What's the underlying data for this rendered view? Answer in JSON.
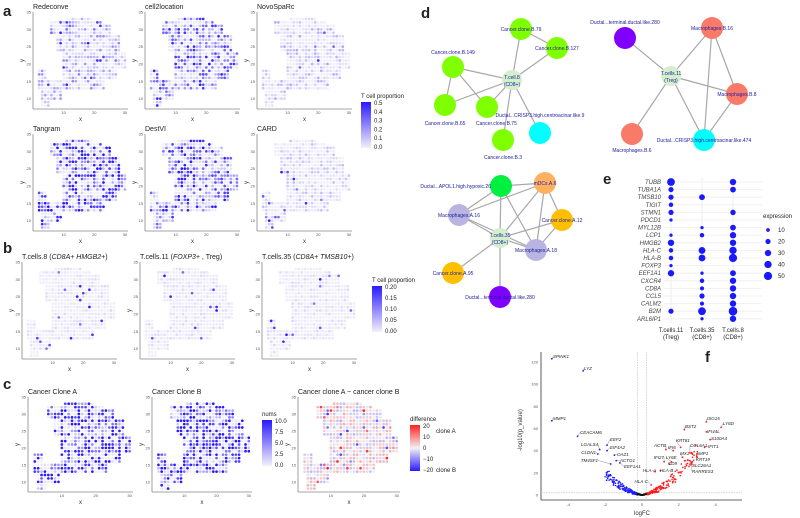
{
  "panel_labels": [
    "a",
    "b",
    "c",
    "d",
    "e",
    "f"
  ],
  "spatial_axis": {
    "xlabel": "x",
    "ylabel": "y",
    "xticks": [
      10,
      20,
      30
    ],
    "yticks": [
      10,
      15,
      20,
      25,
      30,
      35
    ]
  },
  "colors": {
    "low": "#f2f0fa",
    "high": "#2a1aff",
    "red": "#ff2020",
    "node_cancerB": "#7fff00",
    "node_cyan": "#00ffff",
    "node_purple": "#8000ff",
    "node_salmon": "#fa7a6a",
    "node_tcell": "#d4efcb",
    "node_mdc": "#ffb060",
    "node_cancerA": "#ffbf00",
    "node_macroA": "#b9b5e0",
    "node_apol1": "#00f040",
    "dot": "#1a1aff"
  },
  "panel_a": {
    "titles": [
      "Redeconve",
      "cell2location",
      "NovoSpaRc",
      "Tangram",
      "DestVI",
      "CARD"
    ],
    "legend": {
      "title": "T cell proportion",
      "ticks": [
        "0.5",
        "0.4",
        "0.3",
        "0.2",
        "0.1",
        "0.0"
      ]
    }
  },
  "panel_b": {
    "titles": [
      {
        "pre": "T.cells.8 (",
        "ital": "CD8A+ HMGB2+",
        "post": ")"
      },
      {
        "pre": "T.cells.11 (",
        "ital": "FOXP3+",
        "post": " , Treg)"
      },
      {
        "pre": "T.cells.35 (",
        "ital": "CD8A+ TMSB10+",
        "post": ")"
      }
    ],
    "legend": {
      "title": "T cell proportion",
      "ticks": [
        "0.20",
        "0.15",
        "0.10",
        "0.05",
        "0.00"
      ]
    }
  },
  "panel_c": {
    "titles": [
      "Cancer Clone A",
      "Cancer Clone B",
      "Cancer clone A − cancer clone B"
    ],
    "legend_nums": {
      "title": "nums",
      "ticks": [
        "10.0",
        "7.5",
        "5.0",
        "2.5",
        "0.0"
      ]
    },
    "legend_diff": {
      "title": "difference",
      "ticks": [
        "20",
        "10",
        "0",
        "−10",
        "−20"
      ],
      "annot_top": "clone A",
      "annot_bottom": "clone B"
    }
  },
  "panel_d": {
    "networks": [
      {
        "nodes": [
          {
            "label": "T.cell.8",
            "label2": "(CD8+)",
            "color": "node_tcell"
          },
          {
            "label": "Cancer.clone.B.79",
            "color": "node_cancerB"
          },
          {
            "label": "Cancer.clone.B.127",
            "color": "node_cancerB"
          },
          {
            "label": "Cancer.clone.B.149",
            "color": "node_cancerB"
          },
          {
            "label": "Cancer.clone.B.65",
            "color": "node_cancerB"
          },
          {
            "label": "Cancer.clone.B.75",
            "color": "node_cancerB"
          },
          {
            "label": "Cancer.clone.B.3",
            "color": "node_cancerB"
          },
          {
            "label": "Ductal...CRISP3.high.centroacinar.like.9",
            "color": "node_cyan"
          }
        ],
        "edges": [
          [
            0,
            1
          ],
          [
            0,
            2
          ],
          [
            0,
            3
          ],
          [
            0,
            4
          ],
          [
            0,
            5
          ],
          [
            0,
            6
          ],
          [
            0,
            7
          ],
          [
            1,
            2
          ],
          [
            3,
            4
          ],
          [
            3,
            5
          ]
        ]
      },
      {
        "nodes": [
          {
            "label": "T.cells.11",
            "label2": "(Treg)",
            "color": "node_tcell"
          },
          {
            "label": "Ductal...terminal.ductal.like.280",
            "color": "node_purple"
          },
          {
            "label": "Macrophages.B.16",
            "color": "node_salmon"
          },
          {
            "label": "Macrophages.B.8",
            "color": "node_salmon"
          },
          {
            "label": "Macrophages.B.6",
            "color": "node_salmon"
          },
          {
            "label": "Ductal...CRISP3.high.centroacinar.like.474",
            "color": "node_cyan"
          }
        ],
        "edges": [
          [
            0,
            1
          ],
          [
            0,
            2
          ],
          [
            0,
            3
          ],
          [
            0,
            4
          ],
          [
            0,
            5
          ],
          [
            2,
            3
          ],
          [
            2,
            5
          ],
          [
            3,
            5
          ]
        ]
      },
      {
        "nodes": [
          {
            "label": "T.cells.35",
            "label2": "(CD8+)",
            "color": "node_tcell"
          },
          {
            "label": "Ductal...APOL1.high.hypoxic.26",
            "color": "node_apol1"
          },
          {
            "label": "mDCs.A.6",
            "color": "node_mdc"
          },
          {
            "label": "Macrophages.A.16",
            "color": "node_macroA"
          },
          {
            "label": "Cancer.clone.A.12",
            "color": "node_cancerA"
          },
          {
            "label": "Macrophages.A.18",
            "color": "node_macroA"
          },
          {
            "label": "Cancer.clone.A.95",
            "color": "node_cancerA"
          },
          {
            "label": "Ductal...terminal.ductal.like.280",
            "color": "node_purple"
          }
        ],
        "edges": [
          [
            0,
            1
          ],
          [
            0,
            2
          ],
          [
            0,
            3
          ],
          [
            0,
            4
          ],
          [
            0,
            5
          ],
          [
            0,
            6
          ],
          [
            0,
            7
          ],
          [
            1,
            2
          ],
          [
            1,
            5
          ],
          [
            1,
            3
          ],
          [
            2,
            3
          ],
          [
            2,
            4
          ],
          [
            2,
            5
          ],
          [
            3,
            5
          ],
          [
            4,
            5
          ]
        ]
      }
    ]
  },
  "chart_data": [
    {
      "type": "scatter",
      "panel": "e",
      "title": "",
      "categories": [
        "T.cells.11 (Treg)",
        "T.cells.35 (CD8+)",
        "T.cells.8 (CD8+)"
      ],
      "category_lines": [
        [
          "T.cells.11",
          "(Treg)"
        ],
        [
          "T.cells.35",
          "(CD8+)"
        ],
        [
          "T.cells.8",
          "(CD8+)"
        ]
      ],
      "genes": [
        "TUBB",
        "TUBA1A",
        "TMSB10",
        "TIGIT",
        "STMN1",
        "PDCD1",
        "MYL12B",
        "LCP1",
        "HMGB2",
        "HLA-C",
        "HLA-B",
        "FOXP3",
        "EEF1A1",
        "CXCR4",
        "CD8A",
        "CCL5",
        "CALM2",
        "B2M",
        "ARL6IP1"
      ],
      "expression": [
        [
          45,
          null,
          30
        ],
        [
          20,
          null,
          25
        ],
        [
          20,
          25,
          null
        ],
        [
          15,
          null,
          null
        ],
        [
          20,
          null,
          22
        ],
        [
          8,
          null,
          null
        ],
        [
          null,
          8,
          25
        ],
        [
          8,
          15,
          30
        ],
        [
          30,
          null,
          30
        ],
        [
          15,
          35,
          40
        ],
        [
          15,
          35,
          50
        ],
        [
          8,
          null,
          null
        ],
        [
          30,
          8,
          25
        ],
        [
          null,
          15,
          30
        ],
        [
          null,
          12,
          30
        ],
        [
          null,
          20,
          30
        ],
        [
          null,
          12,
          30
        ],
        [
          20,
          45,
          55
        ],
        [
          null,
          8,
          30
        ]
      ],
      "legend": {
        "title": "expression",
        "values": [
          10,
          20,
          30,
          40,
          50
        ]
      }
    },
    {
      "type": "scatter",
      "panel": "f",
      "xlabel": "logFC",
      "ylabel": "-log10(p_value)",
      "xlim": [
        -5.4,
        5.4
      ],
      "ylim": [
        -2,
        130
      ],
      "xticks": [
        -4,
        -2,
        0,
        2,
        4
      ],
      "yticks": [
        0,
        20,
        40,
        60,
        80,
        100,
        120
      ],
      "thresholds": {
        "logFC": [
          -0.25,
          0.25
        ],
        "p": 2
      },
      "labeled_points": [
        {
          "gene": "SPINK1",
          "x": -4.9,
          "y": 123
        },
        {
          "gene": "LYZ",
          "x": -3.2,
          "y": 112
        },
        {
          "gene": "MMP1",
          "x": -4.9,
          "y": 67
        },
        {
          "gene": "CEACAM6",
          "x": -3.5,
          "y": 53
        },
        {
          "gene": "EEF2",
          "x": -1.9,
          "y": 45
        },
        {
          "gene": "LGALS4",
          "x": -2.3,
          "y": 41
        },
        {
          "gene": "EIF4A2",
          "x": -1.9,
          "y": 40
        },
        {
          "gene": "CLDN1",
          "x": -2.4,
          "y": 37
        },
        {
          "gene": "OAZ1",
          "x": -1.5,
          "y": 36
        },
        {
          "gene": "TM4SF1",
          "x": -1.7,
          "y": 28
        },
        {
          "gene": "ACTG1",
          "x": -1.4,
          "y": 31
        },
        {
          "gene": "EEF1A1",
          "x": -1.2,
          "y": 29
        },
        {
          "gene": "ISG15",
          "x": 3.5,
          "y": 66
        },
        {
          "gene": "LY6D",
          "x": 4.3,
          "y": 61
        },
        {
          "gene": "BST2",
          "x": 2.3,
          "y": 59
        },
        {
          "gene": "IFI44L",
          "x": 3.5,
          "y": 57
        },
        {
          "gene": "S100A4",
          "x": 3.7,
          "y": 50
        },
        {
          "gene": "IFIT1",
          "x": 3.4,
          "y": 43
        },
        {
          "gene": "ACTB",
          "x": 1.3,
          "y": 41
        },
        {
          "gene": "IFI6",
          "x": 1.7,
          "y": 40
        },
        {
          "gene": "KRT81",
          "x": 2.1,
          "y": 43
        },
        {
          "gene": "COL6A1",
          "x": 2.6,
          "y": 38
        },
        {
          "gene": "AMP1",
          "x": 3.0,
          "y": 37
        },
        {
          "gene": "MX1",
          "x": 2.2,
          "y": 34
        },
        {
          "gene": "KRT19",
          "x": 3.0,
          "y": 34
        },
        {
          "gene": "SLC26A1",
          "x": 2.6,
          "y": 31
        },
        {
          "gene": "RARRES3",
          "x": 2.7,
          "y": 28
        },
        {
          "gene": "IFI27",
          "x": 1.2,
          "y": 30
        },
        {
          "gene": "LY6E",
          "x": 1.6,
          "y": 30
        },
        {
          "gene": "CD9",
          "x": 1.5,
          "y": 28
        },
        {
          "gene": "HLA-A",
          "x": 0.7,
          "y": 21
        },
        {
          "gene": "HLA-B",
          "x": 1.0,
          "y": 22
        },
        {
          "gene": "HLA-C",
          "x": 0.5,
          "y": 9
        }
      ]
    }
  ]
}
